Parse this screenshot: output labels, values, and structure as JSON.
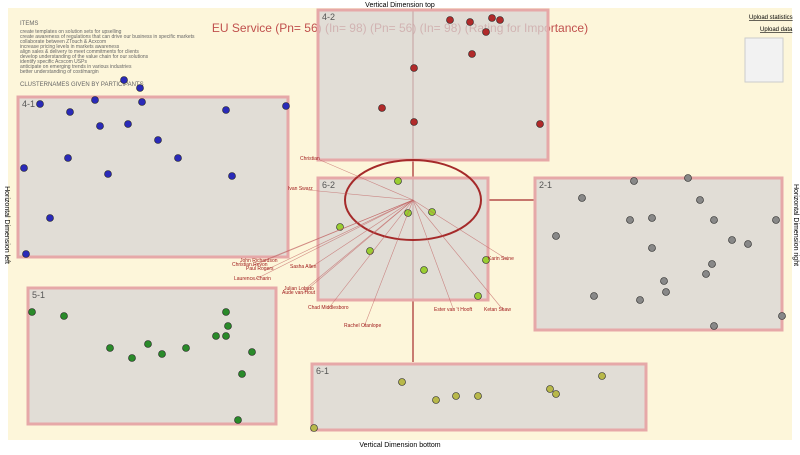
{
  "axes": {
    "top": "Vertical Dimension top",
    "bottom": "Vertical Dimension bottom",
    "left": "Horizontal Dimension left",
    "right": "Horizontal Dimension right"
  },
  "title": "EU Service (Pn= 56) (In= 98) (Pn= 56) (In= 98) (Rating for Importance)",
  "items": {
    "heading": "ITEMS",
    "lines": [
      "create templates on solution sets for upselling",
      "create awareness of regulations that can drive our business in specific markets",
      "collaborate between ZTouch & Acxcom",
      "increase pricing levels in markets awareness",
      "align sales & delivery to meet commitments for clients",
      "develop understanding of the value chain for our solutions",
      "identify specific Acxcom USPs",
      "anticipate on emerging trends in various industries",
      "better understanding of cost/margin"
    ]
  },
  "clusternames": "CLUSTERNAMES GIVEN BY PARTICIPANTS",
  "clusters": [
    "4-1",
    "4-2",
    "6-2",
    "2-1",
    "5-1",
    "6-1"
  ],
  "links": {
    "statistics": "Upload statistics",
    "data": "Upload data"
  },
  "names": [
    "Christian",
    "Paul Rogers",
    "Ivan Swarz",
    "John Richardson",
    "Christian Revon",
    "Sasha Allen",
    "Laurence Charin",
    "Chad Middlesboro",
    "Julian Lobato",
    "Aude van Hout",
    "Rachel Otanlope",
    "Ester van 't Hooft",
    "Ketan Shaw",
    "Karin Seine"
  ]
}
